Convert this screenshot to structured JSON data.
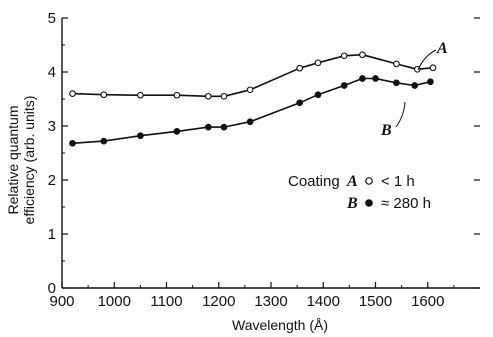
{
  "chart_data": {
    "type": "line",
    "title": "",
    "xlabel": "Wavelength (Å)",
    "ylabel": "Relative quantum efficiency (arb. units)",
    "ylabel_lines": [
      "Relative quantum",
      "efficiency (arb. units)"
    ],
    "xlim": [
      900,
      1700
    ],
    "ylim": [
      0,
      5
    ],
    "xticks": [
      900,
      1000,
      1100,
      1200,
      1300,
      1400,
      1500,
      1600
    ],
    "yticks": [
      0,
      1,
      2,
      3,
      4,
      5
    ],
    "grid": false,
    "series": [
      {
        "name": "A",
        "marker": "open-circle",
        "x": [
          920,
          980,
          1050,
          1120,
          1180,
          1210,
          1260,
          1355,
          1390,
          1440,
          1475,
          1540,
          1580,
          1610
        ],
        "y": [
          3.6,
          3.58,
          3.57,
          3.57,
          3.55,
          3.55,
          3.67,
          4.07,
          4.17,
          4.3,
          4.32,
          4.15,
          4.05,
          4.08
        ]
      },
      {
        "name": "B",
        "marker": "filled-circle",
        "x": [
          920,
          980,
          1050,
          1120,
          1180,
          1210,
          1260,
          1355,
          1390,
          1440,
          1475,
          1500,
          1540,
          1575,
          1605
        ],
        "y": [
          2.68,
          2.72,
          2.82,
          2.9,
          2.98,
          2.98,
          3.08,
          3.43,
          3.58,
          3.75,
          3.88,
          3.88,
          3.8,
          3.75,
          3.82
        ]
      }
    ],
    "curve_labels": [
      "A",
      "B"
    ],
    "legend": {
      "heading": "Coating",
      "entries": [
        {
          "label": "A",
          "symbol": "○",
          "text": "< 1 h"
        },
        {
          "label": "B",
          "symbol": "●",
          "text": "≈ 280 h"
        }
      ]
    }
  }
}
